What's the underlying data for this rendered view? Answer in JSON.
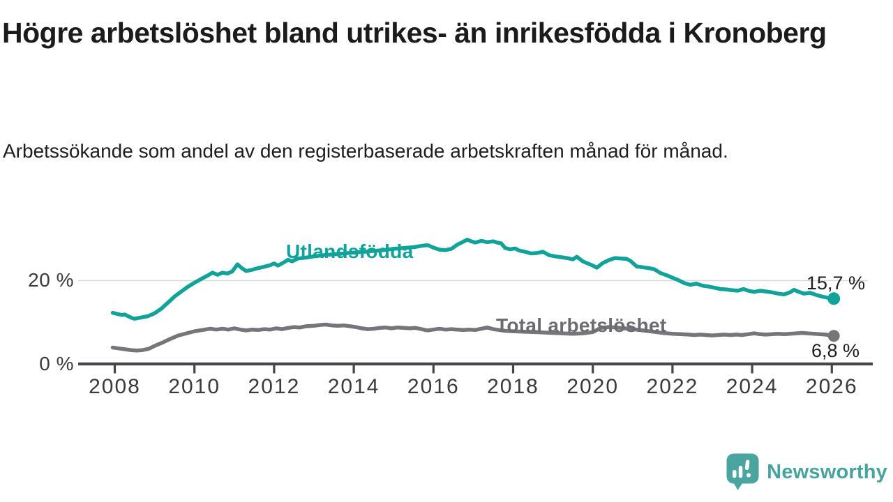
{
  "header": {
    "title": "Högre arbetslöshet bland utrikes- än inrikesfödda i Kronoberg",
    "subtitle": "Arbetssökande som andel av den registerbaserade arbetskraften månad för månad."
  },
  "branding": {
    "logo_text": "Newsworthy",
    "logo_color": "#4aa49f"
  },
  "colors": {
    "background": "#ffffff",
    "title_text": "#1b1b1b",
    "axis": "#45454a",
    "tick_text": "#3a3a3e",
    "gridline": "#d8d8d8",
    "teal_series": "#11a29a",
    "gray_series": "#76767a"
  },
  "chart_data": {
    "type": "line",
    "unit": "%",
    "frequency": "monthly",
    "xlim": [
      2007.1,
      2027.0
    ],
    "ylim": [
      0,
      30
    ],
    "grid": "horizontal-at-20-only",
    "legend_position": "inline-labels-on-lines",
    "x_axis": {
      "ticks": [
        2008,
        2010,
        2012,
        2014,
        2016,
        2018,
        2020,
        2022,
        2024,
        2026
      ]
    },
    "y_axis": {
      "ticks": [
        {
          "value": 0,
          "label": "0 %"
        },
        {
          "value": 20,
          "label": "20 %"
        }
      ]
    },
    "series": [
      {
        "name": "Utlandsfödda",
        "color": "#11a29a",
        "end_value": 15.7,
        "end_label": "15,7 %",
        "points": [
          [
            2007.95,
            12.3
          ],
          [
            2008.08,
            12.0
          ],
          [
            2008.17,
            11.8
          ],
          [
            2008.25,
            11.9
          ],
          [
            2008.42,
            11.1
          ],
          [
            2008.5,
            10.9
          ],
          [
            2008.67,
            11.2
          ],
          [
            2008.83,
            11.5
          ],
          [
            2009.0,
            12.2
          ],
          [
            2009.17,
            13.3
          ],
          [
            2009.33,
            14.7
          ],
          [
            2009.5,
            16.2
          ],
          [
            2009.67,
            17.4
          ],
          [
            2009.83,
            18.5
          ],
          [
            2010.0,
            19.5
          ],
          [
            2010.17,
            20.4
          ],
          [
            2010.33,
            21.2
          ],
          [
            2010.45,
            21.9
          ],
          [
            2010.58,
            21.4
          ],
          [
            2010.7,
            21.9
          ],
          [
            2010.83,
            21.7
          ],
          [
            2010.95,
            22.2
          ],
          [
            2011.08,
            23.9
          ],
          [
            2011.2,
            22.9
          ],
          [
            2011.3,
            22.3
          ],
          [
            2011.45,
            22.6
          ],
          [
            2011.6,
            23.0
          ],
          [
            2011.75,
            23.3
          ],
          [
            2011.9,
            23.7
          ],
          [
            2012.0,
            24.1
          ],
          [
            2012.1,
            23.6
          ],
          [
            2012.25,
            24.4
          ],
          [
            2012.35,
            25.0
          ],
          [
            2012.45,
            24.6
          ],
          [
            2012.6,
            25.3
          ],
          [
            2012.8,
            25.5
          ],
          [
            2013.0,
            25.8
          ],
          [
            2013.25,
            26.1
          ],
          [
            2013.5,
            26.3
          ],
          [
            2013.75,
            26.5
          ],
          [
            2014.0,
            26.7
          ],
          [
            2014.25,
            26.9
          ],
          [
            2014.5,
            27.1
          ],
          [
            2014.75,
            27.3
          ],
          [
            2015.0,
            27.6
          ],
          [
            2015.25,
            27.8
          ],
          [
            2015.5,
            28.0
          ],
          [
            2015.7,
            28.3
          ],
          [
            2015.85,
            28.5
          ],
          [
            2016.0,
            27.9
          ],
          [
            2016.15,
            27.4
          ],
          [
            2016.3,
            27.3
          ],
          [
            2016.45,
            27.6
          ],
          [
            2016.6,
            28.6
          ],
          [
            2016.75,
            29.3
          ],
          [
            2016.85,
            29.8
          ],
          [
            2016.95,
            29.4
          ],
          [
            2017.05,
            29.1
          ],
          [
            2017.2,
            29.5
          ],
          [
            2017.35,
            29.2
          ],
          [
            2017.5,
            29.4
          ],
          [
            2017.6,
            29.1
          ],
          [
            2017.7,
            28.9
          ],
          [
            2017.8,
            27.8
          ],
          [
            2017.92,
            27.5
          ],
          [
            2018.05,
            27.7
          ],
          [
            2018.15,
            27.2
          ],
          [
            2018.3,
            26.9
          ],
          [
            2018.45,
            26.5
          ],
          [
            2018.6,
            26.6
          ],
          [
            2018.75,
            26.9
          ],
          [
            2018.9,
            26.1
          ],
          [
            2019.05,
            25.8
          ],
          [
            2019.2,
            25.6
          ],
          [
            2019.35,
            25.4
          ],
          [
            2019.5,
            25.1
          ],
          [
            2019.6,
            25.7
          ],
          [
            2019.75,
            24.6
          ],
          [
            2019.9,
            24.0
          ],
          [
            2020.0,
            23.6
          ],
          [
            2020.1,
            23.1
          ],
          [
            2020.25,
            24.2
          ],
          [
            2020.4,
            24.9
          ],
          [
            2020.55,
            25.4
          ],
          [
            2020.7,
            25.3
          ],
          [
            2020.85,
            25.2
          ],
          [
            2020.95,
            24.7
          ],
          [
            2021.1,
            23.4
          ],
          [
            2021.25,
            23.2
          ],
          [
            2021.4,
            23.0
          ],
          [
            2021.55,
            22.7
          ],
          [
            2021.7,
            21.8
          ],
          [
            2021.85,
            21.3
          ],
          [
            2022.0,
            20.7
          ],
          [
            2022.15,
            20.1
          ],
          [
            2022.3,
            19.4
          ],
          [
            2022.45,
            19.0
          ],
          [
            2022.6,
            19.3
          ],
          [
            2022.75,
            18.8
          ],
          [
            2022.9,
            18.6
          ],
          [
            2023.05,
            18.3
          ],
          [
            2023.2,
            18.0
          ],
          [
            2023.35,
            17.9
          ],
          [
            2023.5,
            17.7
          ],
          [
            2023.65,
            17.6
          ],
          [
            2023.78,
            18.0
          ],
          [
            2023.9,
            17.6
          ],
          [
            2024.05,
            17.3
          ],
          [
            2024.2,
            17.6
          ],
          [
            2024.35,
            17.4
          ],
          [
            2024.5,
            17.2
          ],
          [
            2024.65,
            16.9
          ],
          [
            2024.8,
            16.7
          ],
          [
            2024.95,
            17.2
          ],
          [
            2025.05,
            17.8
          ],
          [
            2025.15,
            17.4
          ],
          [
            2025.3,
            16.9
          ],
          [
            2025.45,
            17.1
          ],
          [
            2025.6,
            16.6
          ],
          [
            2025.75,
            16.2
          ],
          [
            2025.9,
            15.9
          ],
          [
            2026.05,
            15.7
          ]
        ]
      },
      {
        "name": "Total arbetslöshet",
        "color": "#76767a",
        "end_value": 6.8,
        "end_label": "6,8 %",
        "points": [
          [
            2007.95,
            4.0
          ],
          [
            2008.1,
            3.8
          ],
          [
            2008.25,
            3.6
          ],
          [
            2008.4,
            3.4
          ],
          [
            2008.55,
            3.3
          ],
          [
            2008.7,
            3.4
          ],
          [
            2008.85,
            3.7
          ],
          [
            2009.0,
            4.4
          ],
          [
            2009.2,
            5.2
          ],
          [
            2009.4,
            6.1
          ],
          [
            2009.6,
            6.9
          ],
          [
            2009.8,
            7.4
          ],
          [
            2010.0,
            7.9
          ],
          [
            2010.2,
            8.2
          ],
          [
            2010.4,
            8.5
          ],
          [
            2010.55,
            8.3
          ],
          [
            2010.7,
            8.5
          ],
          [
            2010.85,
            8.3
          ],
          [
            2011.0,
            8.6
          ],
          [
            2011.15,
            8.3
          ],
          [
            2011.3,
            8.1
          ],
          [
            2011.45,
            8.3
          ],
          [
            2011.6,
            8.2
          ],
          [
            2011.75,
            8.4
          ],
          [
            2011.9,
            8.3
          ],
          [
            2012.05,
            8.6
          ],
          [
            2012.2,
            8.4
          ],
          [
            2012.35,
            8.7
          ],
          [
            2012.5,
            8.9
          ],
          [
            2012.65,
            8.8
          ],
          [
            2012.8,
            9.1
          ],
          [
            2013.0,
            9.2
          ],
          [
            2013.15,
            9.4
          ],
          [
            2013.3,
            9.5
          ],
          [
            2013.45,
            9.3
          ],
          [
            2013.6,
            9.2
          ],
          [
            2013.75,
            9.3
          ],
          [
            2013.9,
            9.1
          ],
          [
            2014.05,
            8.9
          ],
          [
            2014.2,
            8.6
          ],
          [
            2014.35,
            8.4
          ],
          [
            2014.5,
            8.5
          ],
          [
            2014.65,
            8.7
          ],
          [
            2014.8,
            8.8
          ],
          [
            2014.95,
            8.6
          ],
          [
            2015.1,
            8.8
          ],
          [
            2015.25,
            8.7
          ],
          [
            2015.4,
            8.6
          ],
          [
            2015.55,
            8.7
          ],
          [
            2015.7,
            8.4
          ],
          [
            2015.85,
            8.1
          ],
          [
            2016.0,
            8.3
          ],
          [
            2016.15,
            8.5
          ],
          [
            2016.3,
            8.3
          ],
          [
            2016.45,
            8.4
          ],
          [
            2016.6,
            8.3
          ],
          [
            2016.75,
            8.2
          ],
          [
            2016.9,
            8.3
          ],
          [
            2017.05,
            8.2
          ],
          [
            2017.2,
            8.5
          ],
          [
            2017.35,
            8.8
          ],
          [
            2017.5,
            8.4
          ],
          [
            2017.65,
            8.2
          ],
          [
            2017.8,
            8.0
          ],
          [
            2018.0,
            7.9
          ],
          [
            2018.25,
            7.8
          ],
          [
            2018.5,
            7.7
          ],
          [
            2018.75,
            7.6
          ],
          [
            2019.0,
            7.5
          ],
          [
            2019.25,
            7.4
          ],
          [
            2019.5,
            7.3
          ],
          [
            2019.75,
            7.4
          ],
          [
            2020.0,
            7.7
          ],
          [
            2020.2,
            8.7
          ],
          [
            2020.4,
            8.9
          ],
          [
            2020.6,
            8.8
          ],
          [
            2020.8,
            8.6
          ],
          [
            2021.0,
            8.4
          ],
          [
            2021.25,
            8.1
          ],
          [
            2021.5,
            7.8
          ],
          [
            2021.75,
            7.5
          ],
          [
            2022.0,
            7.3
          ],
          [
            2022.2,
            7.2
          ],
          [
            2022.4,
            7.1
          ],
          [
            2022.55,
            7.0
          ],
          [
            2022.7,
            7.1
          ],
          [
            2022.85,
            7.0
          ],
          [
            2023.0,
            6.9
          ],
          [
            2023.15,
            7.0
          ],
          [
            2023.3,
            7.1
          ],
          [
            2023.45,
            7.0
          ],
          [
            2023.6,
            7.1
          ],
          [
            2023.75,
            7.0
          ],
          [
            2023.9,
            7.2
          ],
          [
            2024.05,
            7.4
          ],
          [
            2024.2,
            7.2
          ],
          [
            2024.35,
            7.1
          ],
          [
            2024.5,
            7.2
          ],
          [
            2024.65,
            7.3
          ],
          [
            2024.8,
            7.2
          ],
          [
            2024.95,
            7.3
          ],
          [
            2025.1,
            7.4
          ],
          [
            2025.25,
            7.5
          ],
          [
            2025.4,
            7.4
          ],
          [
            2025.55,
            7.3
          ],
          [
            2025.7,
            7.2
          ],
          [
            2025.85,
            7.1
          ],
          [
            2026.05,
            6.8
          ]
        ]
      }
    ]
  }
}
